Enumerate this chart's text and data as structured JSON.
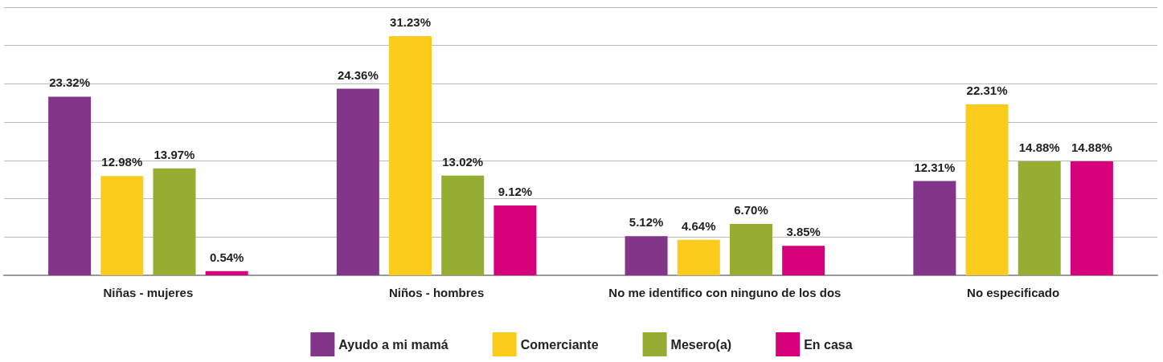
{
  "chart_data": {
    "type": "bar",
    "categories": [
      "Niñas - mujeres",
      "Niños - hombres",
      "No me identifico con ninguno de los dos",
      "No especificado"
    ],
    "series": [
      {
        "name": "Ayudo a mi mamá",
        "color": "#83358a",
        "values": [
          23.32,
          24.36,
          5.12,
          12.31
        ],
        "value_labels": [
          "23.32%",
          "24.36%",
          "5.12%",
          "12.31%"
        ]
      },
      {
        "name": "Comerciante",
        "color": "#fccc1c",
        "values": [
          12.98,
          31.23,
          4.64,
          22.31
        ],
        "value_labels": [
          "12.98%",
          "31.23%",
          "4.64%",
          "22.31%"
        ]
      },
      {
        "name": "Mesero(a)",
        "color": "#96ad34",
        "values": [
          13.97,
          13.02,
          6.7,
          14.88
        ],
        "value_labels": [
          "13.97%",
          "13.02%",
          "6.70%",
          "14.88%"
        ]
      },
      {
        "name": "En casa",
        "color": "#d6007b",
        "values": [
          0.54,
          9.12,
          3.85,
          14.88
        ],
        "value_labels": [
          "0.54%",
          "9.12%",
          "3.85%",
          "14.88%"
        ]
      }
    ],
    "ylim": [
      0,
      35
    ],
    "yticks": [
      0,
      5,
      10,
      15,
      20,
      25,
      30,
      35
    ],
    "grid": "y",
    "tick_labels": "x",
    "legend": "bottom"
  }
}
